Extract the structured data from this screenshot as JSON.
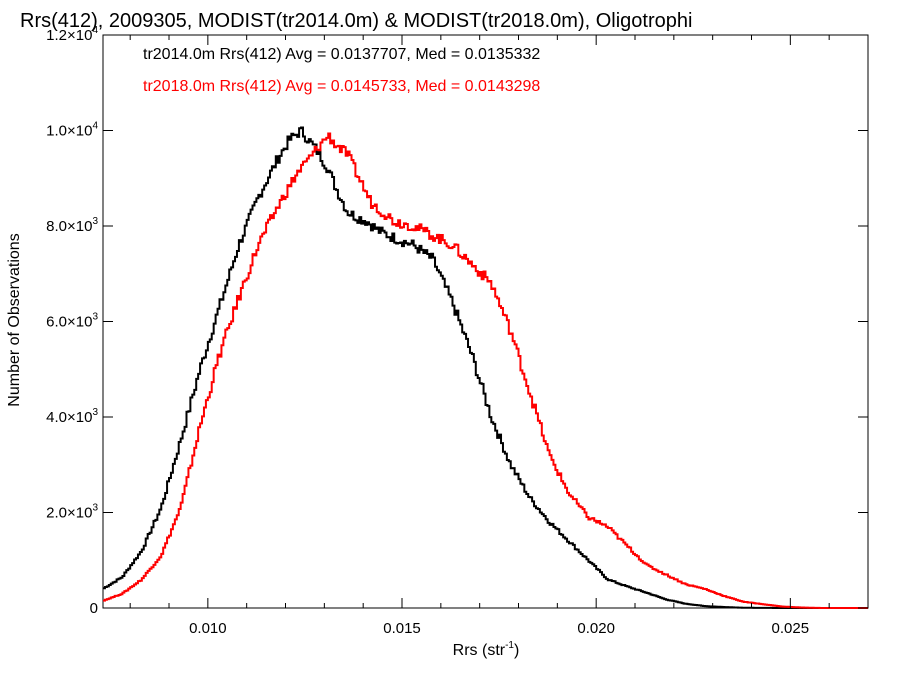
{
  "chart_data": {
    "type": "line",
    "title": "Rrs(412), 2009305, MODIST(tr2014.0m) & MODIST(tr2018.0m), Oligotrophi",
    "xlabel": "Rrs (str",
    "xlabel_sup": "-1",
    "xlabel_close": ")",
    "ylabel": "Number of Observations",
    "xlim": [
      0.0073,
      0.027
    ],
    "ylim": [
      0,
      12000
    ],
    "step": true,
    "x_ticks": [
      {
        "value": 0.01,
        "label": "0.010"
      },
      {
        "value": 0.015,
        "label": "0.015"
      },
      {
        "value": 0.02,
        "label": "0.020"
      },
      {
        "value": 0.025,
        "label": "0.025"
      }
    ],
    "y_ticks": [
      {
        "value": 0,
        "mant": "0",
        "exp": ""
      },
      {
        "value": 2000,
        "mant": "2.0×10",
        "exp": "3"
      },
      {
        "value": 4000,
        "mant": "4.0×10",
        "exp": "3"
      },
      {
        "value": 6000,
        "mant": "6.0×10",
        "exp": "3"
      },
      {
        "value": 8000,
        "mant": "8.0×10",
        "exp": "3"
      },
      {
        "value": 10000,
        "mant": "1.0×10",
        "exp": "4"
      },
      {
        "value": 12000,
        "mant": "1.2×10",
        "exp": "4"
      }
    ],
    "series": [
      {
        "legend": "tr2014.0m Rrs(412) Avg = 0.0137707, Med = 0.0135332",
        "color": "#000000",
        "x": [
          0.0073,
          0.0078,
          0.0083,
          0.0088,
          0.0093,
          0.0098,
          0.0103,
          0.0108,
          0.0113,
          0.0118,
          0.0121,
          0.0124,
          0.0126,
          0.0128,
          0.0131,
          0.0133,
          0.0136,
          0.0138,
          0.0141,
          0.0144,
          0.0148,
          0.0153,
          0.0158,
          0.0163,
          0.0168,
          0.0173,
          0.0178,
          0.0183,
          0.0188,
          0.0193,
          0.0198,
          0.0203,
          0.0208,
          0.0213,
          0.0218,
          0.0223,
          0.0228,
          0.0233,
          0.0238,
          0.0248,
          0.0258,
          0.027
        ],
        "values": [
          400,
          650,
          1200,
          2100,
          3500,
          5000,
          6300,
          7600,
          8600,
          9400,
          9800,
          10000,
          9800,
          9600,
          9200,
          8800,
          8300,
          8200,
          8100,
          7900,
          7750,
          7600,
          7300,
          6400,
          5300,
          4000,
          3000,
          2300,
          1800,
          1400,
          1000,
          600,
          450,
          320,
          180,
          90,
          40,
          20,
          5,
          0,
          0,
          0
        ]
      },
      {
        "legend": "tr2018.0m Rrs(412) Avg = 0.0145733, Med = 0.0143298",
        "color": "#ff0000",
        "x": [
          0.0073,
          0.0078,
          0.0083,
          0.0088,
          0.0093,
          0.0098,
          0.0103,
          0.0108,
          0.0113,
          0.0118,
          0.0123,
          0.0128,
          0.0131,
          0.0133,
          0.0136,
          0.0139,
          0.0142,
          0.0145,
          0.0148,
          0.0153,
          0.0158,
          0.0163,
          0.0168,
          0.0173,
          0.0178,
          0.0183,
          0.0188,
          0.0193,
          0.0198,
          0.0203,
          0.0208,
          0.0213,
          0.0218,
          0.0223,
          0.0228,
          0.0233,
          0.0238,
          0.0243,
          0.0248,
          0.0253,
          0.0258,
          0.027
        ],
        "values": [
          150,
          300,
          600,
          1100,
          2100,
          3800,
          5300,
          6500,
          7600,
          8400,
          9100,
          9600,
          9900,
          9700,
          9500,
          9000,
          8500,
          8300,
          8100,
          8000,
          7800,
          7600,
          7200,
          6800,
          5800,
          4500,
          3200,
          2400,
          1900,
          1700,
          1300,
          900,
          700,
          500,
          400,
          250,
          130,
          80,
          30,
          10,
          0,
          0
        ]
      }
    ]
  }
}
